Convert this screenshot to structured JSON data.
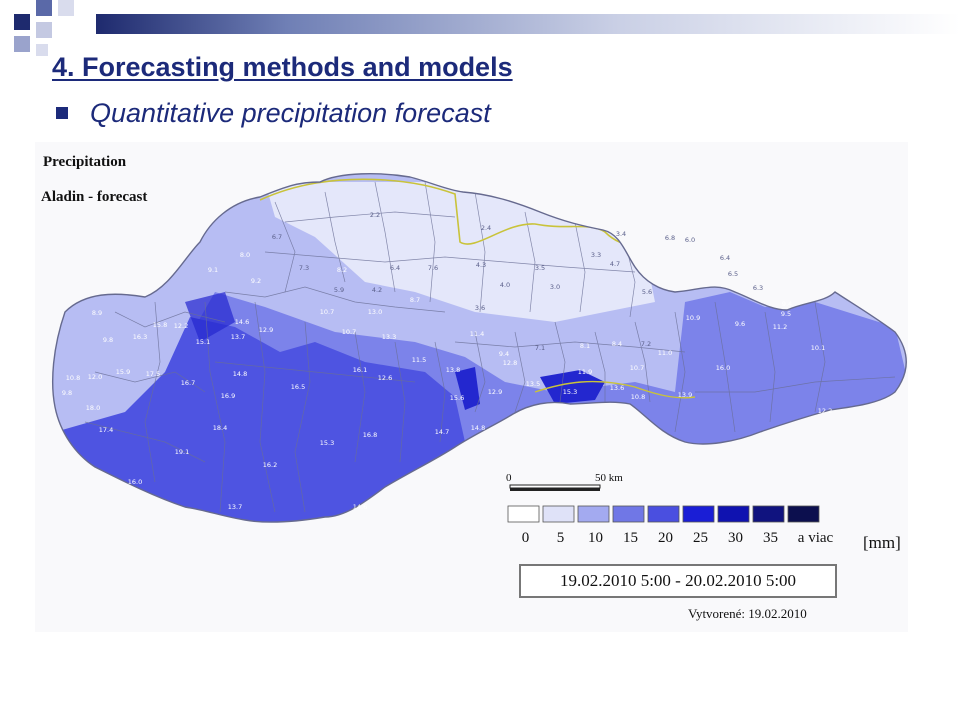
{
  "slide": {
    "title": "4. Forecasting methods and models",
    "bullet": "Quantitative precipitation forecast"
  },
  "map": {
    "title_line1": "Precipitation",
    "title_line2": "Aladin - forecast",
    "scale_bar": {
      "start_label": "0",
      "end_label": "50 km"
    },
    "legend": {
      "tick_labels": [
        "0",
        "5",
        "10",
        "15",
        "20",
        "25",
        "30",
        "35",
        "a viac"
      ],
      "unit": "[mm]",
      "colors": [
        "#ffffff",
        "#dfe2f8",
        "#a3aaf0",
        "#7077e6",
        "#4a4fe0",
        "#1a1ed6",
        "#0f12b0",
        "#10137f",
        "#0c0f4e"
      ]
    },
    "period": "19.02.2010 5:00 - 20.02.2010 5:00",
    "created": "Vytvorené: 19.02.2010",
    "colors": {
      "very_light": "#e4e7fa",
      "light": "#b7bdf3",
      "medium": "#7c83ea",
      "strong": "#4e54e1",
      "dark": "#2327cf"
    },
    "district_values": [
      "8.9",
      "9.8",
      "10.8",
      "9.8",
      "12.0",
      "18.0",
      "17.4",
      "16.0",
      "15.9",
      "16.3",
      "15.8",
      "12.2",
      "15.1",
      "17.5",
      "16.7",
      "18.4",
      "19.1",
      "16.9",
      "16.5",
      "16.2",
      "13.7",
      "14.6",
      "12.9",
      "13.7",
      "14.8",
      "16.1",
      "15.3",
      "16.8",
      "14.6",
      "14.7",
      "10.7",
      "10.7",
      "13.0",
      "13.3",
      "12.6",
      "11.5",
      "13.8",
      "15.6",
      "14.8",
      "12.9",
      "12.8",
      "13.5",
      "15.3",
      "11.9",
      "13.6",
      "10.7",
      "10.8",
      "11.4",
      "9.4",
      "7.1",
      "8.1",
      "8.4",
      "7.2",
      "11.0",
      "13.9",
      "16.0",
      "10.9",
      "9.6",
      "11.2",
      "10.1",
      "12.2",
      "9.5",
      "9.4",
      "6.5",
      "6.3",
      "6.4",
      "6.8",
      "6.0",
      "3.4",
      "3.3",
      "2.4",
      "6.7",
      "8.0",
      "9.2",
      "9.1",
      "7.3",
      "8.2",
      "6.4",
      "7.6",
      "8.7",
      "5.9",
      "4.2",
      "4.3",
      "3.5",
      "4.0",
      "3.6",
      "3.0",
      "4.7",
      "5.6",
      "2.2"
    ]
  }
}
